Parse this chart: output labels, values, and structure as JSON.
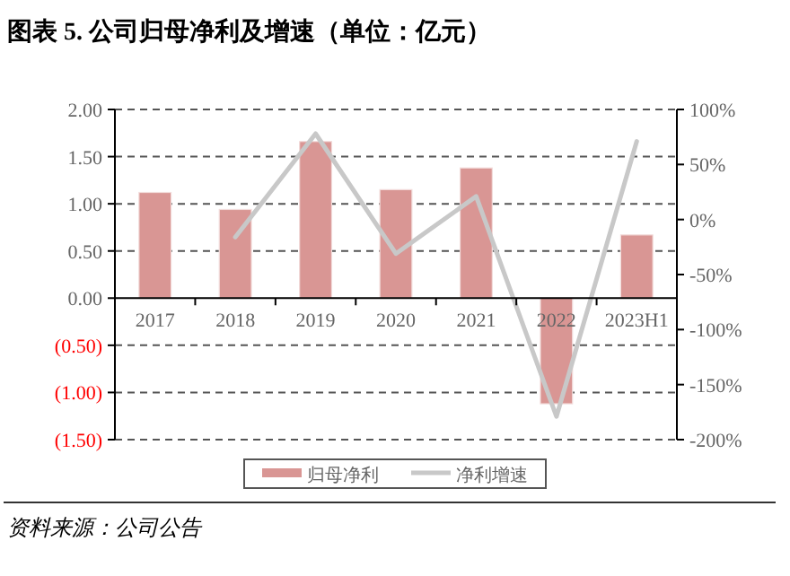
{
  "chart_data": {
    "type": "bar",
    "title": "图表 5. 公司归母净利及增速（单位：亿元）",
    "categories": [
      "2017",
      "2018",
      "2019",
      "2020",
      "2021",
      "2022",
      "2023H1"
    ],
    "series": [
      {
        "name": "归母净利",
        "color": "#d99694",
        "values": [
          1.12,
          0.94,
          1.66,
          1.15,
          1.38,
          -1.12,
          0.67
        ]
      },
      {
        "name": "净利增速",
        "type": "line",
        "axis": "y2",
        "color": "#c8c8c8",
        "values": [
          null,
          -16,
          78,
          -31,
          21,
          -179,
          71
        ]
      }
    ],
    "ylim": [
      -1.5,
      2
    ],
    "yticks": [
      {
        "value": -1.5,
        "label": "(1.50)"
      },
      {
        "value": -1,
        "label": "(1.00)"
      },
      {
        "value": -0.5,
        "label": "(0.50)"
      },
      {
        "value": 0,
        "label": "0.00"
      },
      {
        "value": 0.5,
        "label": "0.50"
      },
      {
        "value": 1,
        "label": "1.00"
      },
      {
        "value": 1.5,
        "label": "1.50"
      },
      {
        "value": 2,
        "label": "2.00"
      }
    ],
    "y2lim": [
      -200,
      100
    ],
    "y2ticks": [
      {
        "value": -200,
        "label": "-200%"
      },
      {
        "value": -150,
        "label": "-150%"
      },
      {
        "value": -100,
        "label": "-100%"
      },
      {
        "value": -50,
        "label": "-50%"
      },
      {
        "value": 0,
        "label": "0%"
      },
      {
        "value": 50,
        "label": "50%"
      },
      {
        "value": 100,
        "label": "100%"
      }
    ],
    "grid": "y",
    "legend": "bottom",
    "annotations": [
      "资料来源：公司公告"
    ]
  }
}
